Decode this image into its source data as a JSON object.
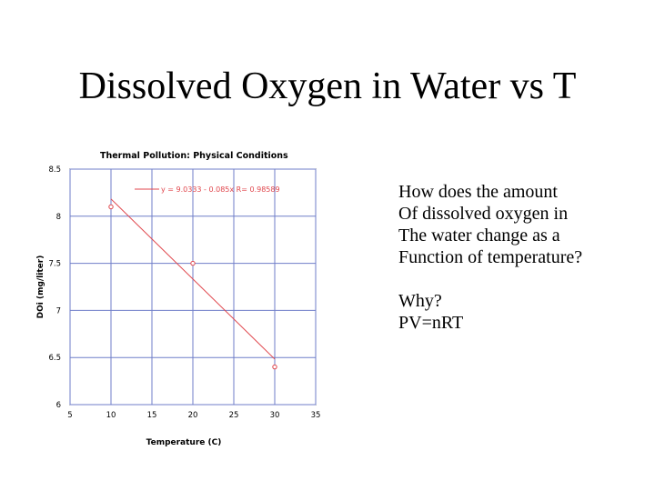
{
  "slide": {
    "title": "Dissolved Oxygen in Water vs T",
    "question_lines": [
      "How does the amount",
      "Of dissolved oxygen in",
      "The water change as a",
      "Function of temperature?"
    ],
    "why_lines": [
      "Why?",
      "PV=nRT"
    ]
  },
  "chart_data": {
    "type": "scatter",
    "title": "Thermal Pollution: Physical Conditions",
    "xlabel": "Temperature (C)",
    "ylabel": "DOi (mg/liter)",
    "xlim": [
      5,
      35
    ],
    "ylim": [
      6,
      8.5
    ],
    "xticks": [
      "5",
      "10",
      "15",
      "20",
      "25",
      "30",
      "35"
    ],
    "yticks": [
      "6",
      "6.5",
      "7",
      "7.5",
      "8",
      "8.5"
    ],
    "grid": true,
    "legend_position": "top",
    "series": [
      {
        "name": "y = 9.0333 - 0.085x R= 0.98589",
        "color": "#e0464c",
        "points": [
          {
            "x": 10,
            "y": 8.1
          },
          {
            "x": 20,
            "y": 7.5
          },
          {
            "x": 30,
            "y": 6.4
          }
        ],
        "fit": {
          "intercept": 9.0333,
          "slope": -0.085,
          "x_range": [
            10,
            30
          ]
        }
      }
    ],
    "colors": {
      "grid": "#6f7ec8",
      "frame": "#000000",
      "text": "#000000"
    }
  }
}
